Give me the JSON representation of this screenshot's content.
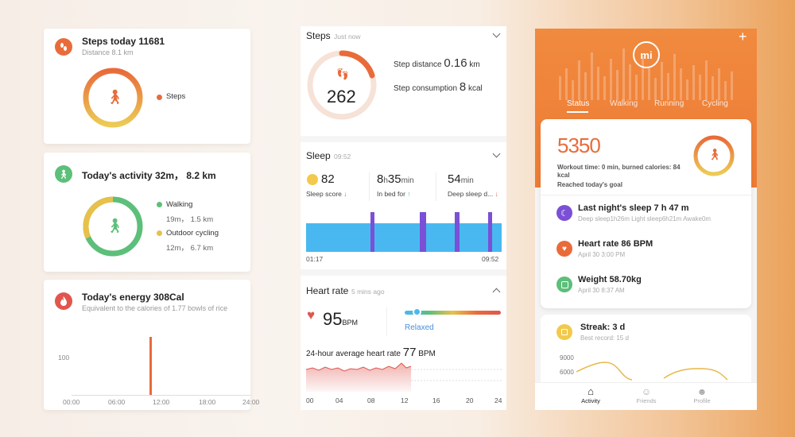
{
  "colors": {
    "orange": "#e96b3a",
    "green": "#5cbf7a",
    "yellow": "#e8c04a",
    "purple": "#7b4fd6",
    "blue": "#4ab8f0",
    "red": "#e0564f"
  },
  "left": {
    "steps_card": {
      "title": "Steps today 11681",
      "subtitle": "Distance 8.1 km",
      "legend": "Steps",
      "icon": "footprint-icon"
    },
    "activity_card": {
      "title": "Today's activity 32m， 8.2 km",
      "icon": "walking-icon",
      "items": [
        {
          "label": "Walking",
          "detail": "19m， 1.5 km"
        },
        {
          "label": "Outdoor cycling",
          "detail": "12m， 6.7 km"
        }
      ]
    },
    "energy_card": {
      "title": "Today's energy 308Cal",
      "subtitle": "Equivalent to the calories of 1.77 bowls of rice",
      "icon": "flame-icon",
      "y_tick": "100",
      "x_ticks": [
        "00:00",
        "06:00",
        "12:00",
        "18:00",
        "24:00"
      ]
    }
  },
  "middle": {
    "steps": {
      "title": "Steps",
      "time": "Just now",
      "count": "262",
      "distance_label": "Step distance",
      "distance_value": "0.16",
      "distance_unit": "km",
      "consumption_label": "Step consumption",
      "consumption_value": "8",
      "consumption_unit": "kcal",
      "progress": 0.15
    },
    "sleep": {
      "title": "Sleep",
      "time": "09:52",
      "score": "82",
      "score_label": "Sleep score",
      "bed_h": "8",
      "bed_m": "35",
      "bed_unit_h": "h",
      "bed_unit_m": "min",
      "bed_label": "In bed for",
      "deep": "54",
      "deep_unit": "min",
      "deep_label": "Deep sleep d...",
      "start": "01:17",
      "end": "09:52"
    },
    "heart": {
      "title": "Heart rate",
      "time": "5 mins ago",
      "bpm": "95",
      "bpm_unit": "BPM",
      "state": "Relaxed",
      "avg_label": "24-hour average heart rate",
      "avg_value": "77",
      "avg_unit": "BPM",
      "x_ticks": [
        "00",
        "04",
        "08",
        "12",
        "16",
        "20",
        "24"
      ]
    }
  },
  "right": {
    "logo": "mi",
    "tabs": [
      "Status",
      "Walking",
      "Running",
      "Cycling"
    ],
    "active_tab": "Status",
    "summary": {
      "steps": "5350",
      "workout": "Workout time: 0 min, burned calories: 84 kcal",
      "goal": "Reached today's goal"
    },
    "rows": [
      {
        "title": "Last night's sleep 7 h 47 m",
        "sub": "Deep sleep1h26m Light sleep6h21m Awake0m",
        "icon": "moon-icon"
      },
      {
        "title": "Heart rate 86 BPM",
        "sub": "April 30 3:00 PM",
        "icon": "heart-icon"
      },
      {
        "title": "Weight 58.70kg",
        "sub": "April 30 8:37 AM",
        "icon": "scale-icon"
      }
    ],
    "streak": {
      "title": "Streak: 3 d",
      "sub": "Best record: 15 d",
      "y_ticks": [
        "9000",
        "6000"
      ]
    },
    "nav": [
      {
        "label": "Activity",
        "icon": "home-icon"
      },
      {
        "label": "Friends",
        "icon": "friends-icon"
      },
      {
        "label": "Profile",
        "icon": "profile-icon"
      }
    ]
  }
}
